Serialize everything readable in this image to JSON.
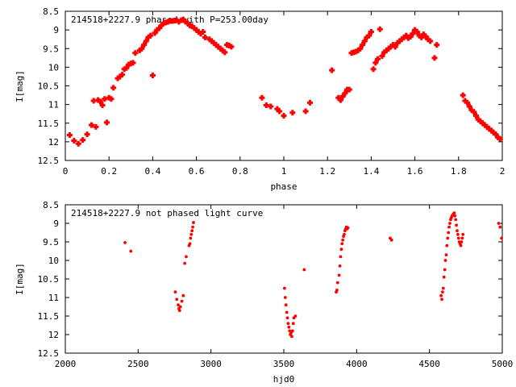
{
  "chart_data": [
    {
      "type": "scatter",
      "title": "214518+2227.9 phased with P=253.00day",
      "xlabel": "phase",
      "ylabel": "I[mag]",
      "xlim": [
        0,
        2
      ],
      "ylim": [
        12.5,
        8.5
      ],
      "y_inverted": true,
      "grid": false,
      "marker_color": "#ff0000",
      "marker": "filled-cross",
      "x_ticks": [
        "0",
        "0.2",
        "0.4",
        "0.6",
        "0.8",
        "1",
        "1.2",
        "1.4",
        "1.6",
        "1.8",
        "2"
      ],
      "x_tick_values": [
        0,
        0.2,
        0.4,
        0.6,
        0.8,
        1,
        1.2,
        1.4,
        1.6,
        1.8,
        2
      ],
      "y_ticks": [
        "8.5",
        "9",
        "9.5",
        "10",
        "10.5",
        "11",
        "11.5",
        "12",
        "12.5"
      ],
      "y_tick_values": [
        8.5,
        9,
        9.5,
        10,
        10.5,
        11,
        11.5,
        12,
        12.5
      ],
      "series": [
        {
          "x": [
            0.02,
            0.04,
            0.06,
            0.08,
            0.1,
            0.12,
            0.13,
            0.14,
            0.15,
            0.16,
            0.17,
            0.18,
            0.19,
            0.2,
            0.21,
            0.22,
            0.24,
            0.25,
            0.26,
            0.27,
            0.28,
            0.29,
            0.3,
            0.31,
            0.32,
            0.34,
            0.35,
            0.36,
            0.37,
            0.38,
            0.39,
            0.4,
            0.41,
            0.42,
            0.43,
            0.44,
            0.45,
            0.46,
            0.47,
            0.48,
            0.49,
            0.5,
            0.51,
            0.52,
            0.53,
            0.54,
            0.55,
            0.56,
            0.57,
            0.58,
            0.59,
            0.6,
            0.61,
            0.62,
            0.63,
            0.64,
            0.66,
            0.67,
            0.68,
            0.69,
            0.7,
            0.71,
            0.72,
            0.73,
            0.74,
            0.75,
            0.76,
            0.9,
            0.92,
            0.94,
            0.97,
            0.98,
            1.0,
            1.04,
            1.1,
            1.12,
            1.22,
            1.25,
            1.26,
            1.27,
            1.28,
            1.29,
            1.3,
            1.31,
            1.32,
            1.33,
            1.34,
            1.35,
            1.36,
            1.37,
            1.38,
            1.39,
            1.4,
            1.41,
            1.42,
            1.43,
            1.44,
            1.45,
            1.46,
            1.47,
            1.48,
            1.49,
            1.5,
            1.51,
            1.52,
            1.53,
            1.54,
            1.55,
            1.56,
            1.57,
            1.58,
            1.59,
            1.6,
            1.61,
            1.62,
            1.63,
            1.64,
            1.65,
            1.66,
            1.67,
            1.69,
            1.7,
            1.82,
            1.83,
            1.84,
            1.85,
            1.86,
            1.87,
            1.88,
            1.89,
            1.9,
            1.91,
            1.92,
            1.93,
            1.94,
            1.95,
            1.96,
            1.97,
            1.98,
            1.99
          ],
          "y": [
            11.82,
            11.97,
            12.05,
            11.95,
            11.8,
            11.55,
            10.9,
            11.6,
            10.88,
            10.92,
            11.02,
            10.85,
            11.48,
            10.82,
            10.85,
            10.55,
            10.3,
            10.25,
            10.2,
            10.05,
            10.02,
            9.93,
            9.9,
            9.88,
            9.62,
            9.55,
            9.5,
            9.4,
            9.3,
            9.2,
            9.15,
            10.22,
            9.08,
            9.0,
            8.95,
            8.88,
            8.82,
            8.8,
            8.78,
            8.76,
            8.76,
            8.75,
            8.74,
            8.78,
            8.74,
            8.72,
            8.78,
            8.82,
            8.88,
            8.9,
            8.95,
            9.0,
            9.05,
            9.1,
            9.05,
            9.2,
            9.25,
            9.3,
            9.35,
            9.4,
            9.45,
            9.5,
            9.55,
            9.6,
            9.4,
            9.42,
            9.45,
            10.82,
            11.02,
            11.05,
            11.12,
            11.18,
            11.3,
            11.22,
            11.18,
            10.95,
            10.08,
            10.82,
            10.88,
            10.78,
            10.7,
            10.6,
            10.6,
            9.62,
            9.6,
            9.58,
            9.55,
            9.5,
            9.4,
            9.3,
            9.2,
            9.15,
            9.05,
            10.05,
            9.88,
            9.78,
            8.98,
            9.7,
            9.6,
            9.55,
            9.5,
            9.45,
            9.4,
            9.45,
            9.35,
            9.3,
            9.25,
            9.2,
            9.15,
            9.22,
            9.18,
            9.1,
            9.0,
            9.05,
            9.15,
            9.2,
            9.12,
            9.18,
            9.25,
            9.3,
            9.75,
            9.4,
            10.75,
            10.9,
            10.95,
            11.05,
            11.15,
            11.2,
            11.3,
            11.4,
            11.45,
            11.5,
            11.55,
            11.6,
            11.65,
            11.7,
            11.75,
            11.8,
            11.88,
            11.92
          ]
        }
      ]
    },
    {
      "type": "scatter",
      "title": "214518+2227.9 not phased light curve",
      "xlabel": "hjd0",
      "ylabel": "I[mag]",
      "xlim": [
        2000,
        5000
      ],
      "ylim": [
        12.5,
        8.5
      ],
      "y_inverted": true,
      "grid": false,
      "marker_color": "#ff0000",
      "marker": "small-dot",
      "x_ticks": [
        "2000",
        "2500",
        "3000",
        "3500",
        "4000",
        "4500",
        "5000"
      ],
      "x_tick_values": [
        2000,
        2500,
        3000,
        3500,
        4000,
        4500,
        5000
      ],
      "y_ticks": [
        "8.5",
        "9",
        "9.5",
        "10",
        "10.5",
        "11",
        "11.5",
        "12",
        "12.5"
      ],
      "y_tick_values": [
        8.5,
        9,
        9.5,
        10,
        10.5,
        11,
        11.5,
        12,
        12.5
      ],
      "series": [
        {
          "x": [
            2410,
            2450,
            2755,
            2765,
            2775,
            2780,
            2785,
            2790,
            2800,
            2810,
            2820,
            2830,
            2850,
            2855,
            2860,
            2865,
            2870,
            2875,
            2880,
            3505,
            3510,
            3515,
            3520,
            3525,
            3530,
            3535,
            3540,
            3545,
            3550,
            3555,
            3560,
            3565,
            3570,
            3580,
            3640,
            3860,
            3865,
            3870,
            3880,
            3885,
            3890,
            3895,
            3900,
            3905,
            3910,
            3915,
            3920,
            3925,
            3930,
            3935,
            3940,
            4230,
            4240,
            4580,
            4585,
            4590,
            4595,
            4600,
            4605,
            4610,
            4615,
            4620,
            4625,
            4630,
            4635,
            4640,
            4645,
            4650,
            4655,
            4660,
            4665,
            4670,
            4675,
            4680,
            4685,
            4690,
            4695,
            4700,
            4705,
            4710,
            4715,
            4720,
            4725,
            4730,
            4975,
            4985,
            4995
          ],
          "y": [
            9.52,
            9.75,
            10.85,
            11.05,
            11.2,
            11.3,
            11.35,
            11.25,
            11.1,
            10.95,
            10.08,
            9.9,
            9.6,
            9.55,
            9.4,
            9.3,
            9.2,
            9.1,
            8.98,
            10.75,
            11.0,
            11.2,
            11.4,
            11.55,
            11.7,
            11.8,
            11.9,
            12.0,
            11.95,
            12.05,
            11.9,
            11.7,
            11.55,
            11.5,
            10.25,
            10.85,
            10.8,
            10.6,
            10.4,
            10.15,
            9.9,
            9.7,
            9.55,
            9.45,
            9.35,
            9.3,
            9.2,
            9.15,
            9.1,
            9.15,
            9.12,
            9.4,
            9.45,
            10.95,
            11.05,
            10.85,
            10.75,
            10.45,
            10.25,
            10.0,
            9.85,
            9.6,
            9.4,
            9.25,
            9.1,
            9.0,
            8.9,
            8.85,
            8.8,
            8.78,
            8.75,
            8.72,
            8.8,
            8.9,
            9.05,
            9.2,
            9.3,
            9.4,
            9.5,
            9.55,
            9.6,
            9.5,
            9.4,
            9.3,
            9.0,
            9.1,
            9.4
          ]
        }
      ]
    }
  ]
}
